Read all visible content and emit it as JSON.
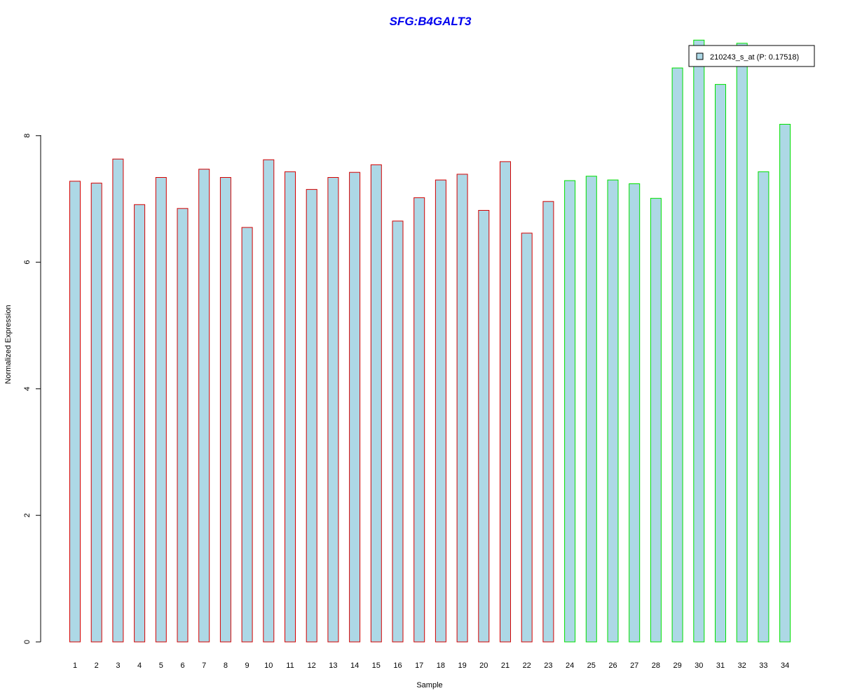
{
  "chart_data": {
    "type": "bar",
    "title": "SFG:B4GALT3",
    "title_color": "#0000ee",
    "xlabel": "Sample",
    "ylabel": "Normalized Expression",
    "ylim": [
      0,
      9.6
    ],
    "yticks": [
      0,
      2,
      4,
      6,
      8
    ],
    "grid": false,
    "categories": [
      "1",
      "2",
      "3",
      "4",
      "5",
      "6",
      "7",
      "8",
      "9",
      "10",
      "11",
      "12",
      "13",
      "14",
      "15",
      "16",
      "17",
      "18",
      "19",
      "20",
      "21",
      "22",
      "23",
      "24",
      "25",
      "26",
      "27",
      "28",
      "29",
      "30",
      "31",
      "32",
      "33",
      "34"
    ],
    "series": [
      {
        "name": "210243_s_at (P: 0.17518)",
        "fill_color": "#add8e6",
        "values": [
          7.28,
          7.25,
          7.63,
          6.91,
          7.34,
          6.85,
          7.47,
          7.34,
          6.55,
          7.62,
          7.43,
          7.15,
          7.34,
          7.42,
          7.54,
          6.65,
          7.02,
          7.3,
          7.39,
          6.82,
          7.59,
          6.46,
          6.96,
          7.29,
          7.36,
          7.3,
          7.24,
          7.01,
          9.07,
          9.51,
          8.81,
          9.46,
          7.43,
          8.18
        ]
      }
    ],
    "groups": [
      {
        "samples": [
          1,
          23
        ],
        "border_color": "#d40000"
      },
      {
        "samples": [
          24,
          34
        ],
        "border_color": "#00e000"
      }
    ],
    "legend": {
      "placement": "top-right",
      "entries": [
        {
          "label": "210243_s_at (P: 0.17518)",
          "swatch_color": "#add8e6"
        }
      ]
    }
  }
}
